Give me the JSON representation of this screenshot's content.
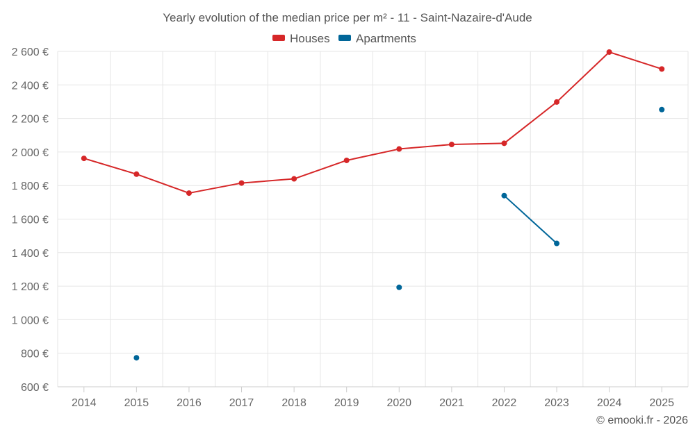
{
  "chart_data": {
    "type": "line",
    "title": "Yearly evolution of the median price per m² - 11 - Saint-Nazaire-d'Aude",
    "categories": [
      "2014",
      "2015",
      "2016",
      "2017",
      "2018",
      "2019",
      "2020",
      "2021",
      "2022",
      "2023",
      "2024",
      "2025"
    ],
    "ylim": [
      600,
      2600
    ],
    "yticks": [
      600,
      800,
      1000,
      1200,
      1400,
      1600,
      1800,
      2000,
      2200,
      2400,
      2600
    ],
    "ytick_labels": [
      "600 €",
      "800 €",
      "1 000 €",
      "1 200 €",
      "1 400 €",
      "1 600 €",
      "1 800 €",
      "2 000 €",
      "2 200 €",
      "2 400 €",
      "2 600 €"
    ],
    "grid": true,
    "legend_position": "top-center",
    "series": [
      {
        "name": "Houses",
        "color": "#d62728",
        "values": [
          1962,
          1868,
          1755,
          1815,
          1840,
          1950,
          2018,
          2045,
          2052,
          2298,
          2596,
          2495
        ]
      },
      {
        "name": "Apartments",
        "color": "#006699",
        "values": [
          null,
          773,
          null,
          null,
          null,
          null,
          1193,
          null,
          1740,
          1455,
          null,
          2253
        ]
      }
    ],
    "credit": "© emooki.fr - 2026"
  }
}
